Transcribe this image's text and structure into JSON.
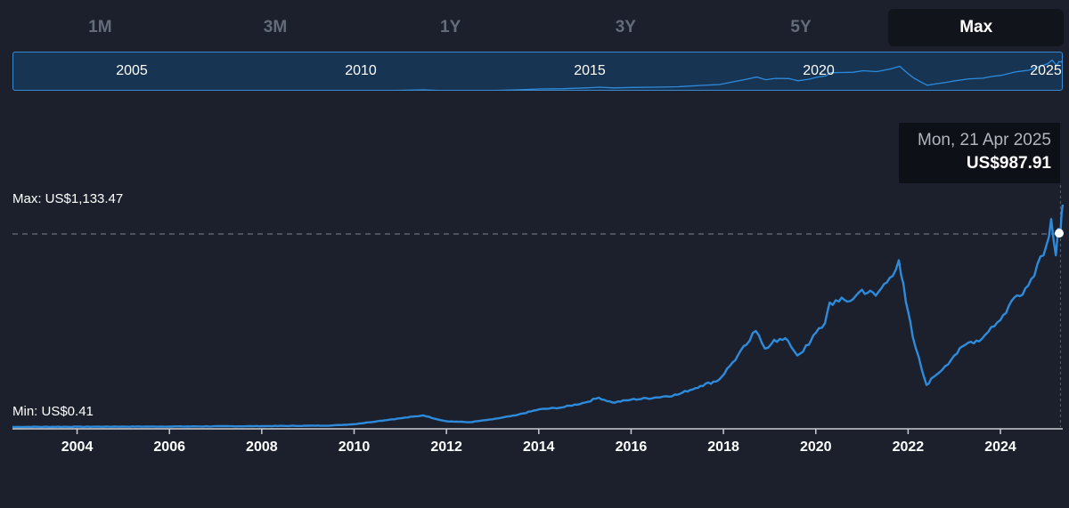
{
  "range_tabs": [
    {
      "label": "1M",
      "active": false
    },
    {
      "label": "3M",
      "active": false
    },
    {
      "label": "1Y",
      "active": false
    },
    {
      "label": "3Y",
      "active": false
    },
    {
      "label": "5Y",
      "active": false
    },
    {
      "label": "Max",
      "active": true
    }
  ],
  "navigator": {
    "year_labels": [
      "2005",
      "2010",
      "2015",
      "2020",
      "2025"
    ]
  },
  "max_label": "Max: US$1,133.47",
  "min_label": "Min: US$0.41",
  "tooltip": {
    "date": "Mon, 21 Apr 2025",
    "price": "US$987.91"
  },
  "colors": {
    "background": "#1b202c",
    "line": "#2e8bdc",
    "navigator_fill": "#173453",
    "navigator_border": "#3b8ad0",
    "tooltip_bg": "#0d1016"
  },
  "chart_data": {
    "type": "line",
    "title": "",
    "xlabel": "",
    "ylabel": "",
    "x_ticks": [
      "2004",
      "2006",
      "2008",
      "2010",
      "2012",
      "2014",
      "2016",
      "2018",
      "2020",
      "2022",
      "2024"
    ],
    "xlim": [
      2002.6,
      2025.35
    ],
    "ylim": [
      0.41,
      1133.47
    ],
    "max_value": 1133.47,
    "min_value": 0.41,
    "highlight": {
      "date": "2025-04-21",
      "value": 987.91
    },
    "series": [
      {
        "x": [
          2002.6,
          2004.0,
          2006.0,
          2008.0,
          2009.5,
          2010.0,
          2010.5,
          2011.0,
          2011.5,
          2011.8,
          2012.0,
          2012.5,
          2013.0,
          2013.5,
          2014.0,
          2014.5,
          2015.0,
          2015.3,
          2015.6,
          2016.0,
          2016.5,
          2017.0,
          2017.5,
          2017.9,
          2018.2,
          2018.5,
          2018.7,
          2018.9,
          2019.1,
          2019.4,
          2019.6,
          2019.85,
          2020.0,
          2020.2,
          2020.3,
          2020.5,
          2020.8,
          2021.0,
          2021.3,
          2021.6,
          2021.8,
          2021.95,
          2022.1,
          2022.3,
          2022.4,
          2022.55,
          2022.8,
          2023.0,
          2023.3,
          2023.6,
          2023.8,
          2024.0,
          2024.3,
          2024.6,
          2024.8,
          2025.0,
          2025.1,
          2025.2,
          2025.25,
          2025.3,
          2025.35
        ],
        "values": [
          1,
          2,
          3,
          5,
          8,
          15,
          30,
          45,
          60,
          40,
          30,
          25,
          40,
          60,
          90,
          100,
          125,
          150,
          125,
          140,
          150,
          165,
          210,
          240,
          330,
          420,
          490,
          400,
          445,
          440,
          365,
          420,
          480,
          530,
          635,
          640,
          650,
          700,
          670,
          760,
          850,
          640,
          460,
          290,
          215,
          255,
          310,
          365,
          430,
          450,
          510,
          545,
          660,
          720,
          830,
          930,
          1060,
          875,
          1010,
          987.91,
          1133.47
        ]
      }
    ]
  }
}
